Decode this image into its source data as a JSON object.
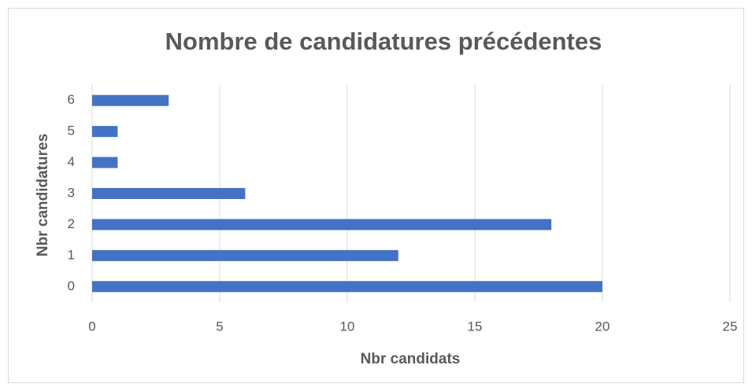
{
  "chart_data": {
    "type": "bar",
    "orientation": "horizontal",
    "title": "Nombre de candidatures précédentes",
    "xlabel": "Nbr candidats",
    "ylabel": "Nbr candidatures",
    "categories": [
      "0",
      "1",
      "2",
      "3",
      "4",
      "5",
      "6"
    ],
    "values": [
      20,
      12,
      18,
      6,
      1,
      1,
      3
    ],
    "color": "#4472c4",
    "xlim": [
      0,
      25
    ],
    "xticks": [
      0,
      5,
      10,
      15,
      20,
      25
    ],
    "grid": true
  }
}
